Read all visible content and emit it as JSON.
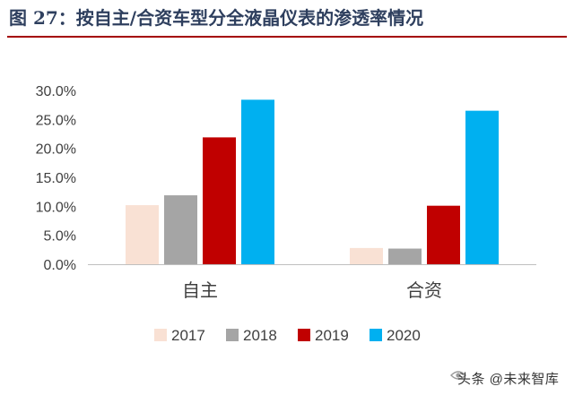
{
  "header": {
    "title": "图 27：按自主/合资车型分全液晶仪表的渗透率情况"
  },
  "colors": {
    "title": "#2e3f5e",
    "rule": "#a40000",
    "axis": "#bfbfbf",
    "text": "#404040"
  },
  "chart_data": {
    "type": "bar",
    "categories": [
      "自主",
      "合资"
    ],
    "series": [
      {
        "name": "2017",
        "color": "#f9e1d4",
        "values": [
          0.102,
          0.028
        ]
      },
      {
        "name": "2018",
        "color": "#a5a5a5",
        "values": [
          0.119,
          0.027
        ]
      },
      {
        "name": "2019",
        "color": "#c00000",
        "values": [
          0.219,
          0.101
        ]
      },
      {
        "name": "2020",
        "color": "#00b0f0",
        "values": [
          0.284,
          0.265
        ]
      }
    ],
    "ylim": [
      0,
      0.3
    ],
    "yticks": [
      "0.0%",
      "5.0%",
      "10.0%",
      "15.0%",
      "20.0%",
      "25.0%",
      "30.0%"
    ],
    "legend_position": "bottom",
    "grid": false
  },
  "watermark": {
    "text": "头条 @未来智库"
  }
}
